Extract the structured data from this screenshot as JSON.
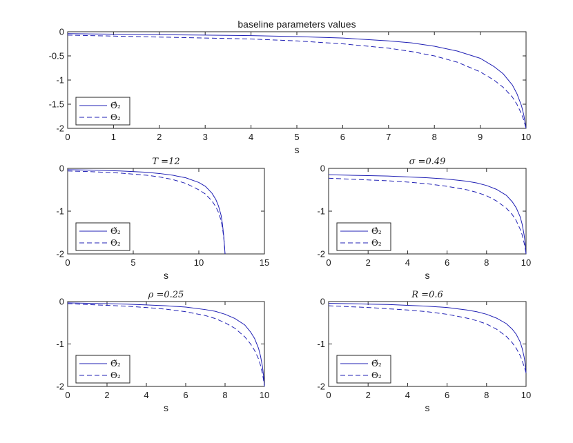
{
  "colors": {
    "series": "#1f1fb4",
    "axis": "#262626",
    "background": "#ffffff"
  },
  "chart_data": [
    {
      "type": "line",
      "title": "baseline parameters values",
      "title_style": "sans",
      "xlabel": "s",
      "ylabel": "",
      "xlim": [
        0,
        10
      ],
      "ylim": [
        -2,
        0
      ],
      "xticks": [
        0,
        1,
        2,
        3,
        4,
        5,
        6,
        7,
        8,
        9,
        10
      ],
      "yticks": [
        0,
        -0.5,
        -1,
        -1.5,
        -2
      ],
      "ytick_labels": [
        "0",
        "-0.5",
        "-1",
        "-1.5",
        "-2"
      ],
      "legend_position": "bottom-left",
      "series": [
        {
          "name": "Θ̂₂",
          "style": "solid",
          "x": [
            0,
            1,
            2,
            3,
            4,
            5,
            6,
            7,
            7.5,
            8,
            8.5,
            9,
            9.3,
            9.5,
            9.7,
            9.8,
            9.9,
            9.95,
            10
          ],
          "y": [
            -0.04,
            -0.05,
            -0.06,
            -0.07,
            -0.08,
            -0.1,
            -0.13,
            -0.19,
            -0.23,
            -0.3,
            -0.4,
            -0.55,
            -0.72,
            -0.87,
            -1.1,
            -1.28,
            -1.53,
            -1.72,
            -2.0
          ]
        },
        {
          "name": "Θ₂",
          "style": "dashed",
          "x": [
            0,
            1,
            2,
            3,
            4,
            5,
            6,
            7,
            7.5,
            8,
            8.5,
            9,
            9.3,
            9.5,
            9.7,
            9.8,
            9.9,
            9.95,
            10
          ],
          "y": [
            -0.07,
            -0.09,
            -0.11,
            -0.13,
            -0.15,
            -0.19,
            -0.25,
            -0.34,
            -0.41,
            -0.5,
            -0.63,
            -0.83,
            -1.0,
            -1.15,
            -1.35,
            -1.5,
            -1.7,
            -1.83,
            -2.0
          ]
        }
      ]
    },
    {
      "type": "line",
      "title": "T =12",
      "title_style": "serif",
      "xlabel": "s",
      "ylabel": "",
      "xlim": [
        0,
        15
      ],
      "ylim": [
        -2,
        0
      ],
      "xticks": [
        0,
        5,
        10,
        15
      ],
      "yticks": [
        0,
        -1,
        -2
      ],
      "ytick_labels": [
        "0",
        "-1",
        "-2"
      ],
      "legend_position": "bottom-left",
      "series": [
        {
          "name": "Θ̃₂",
          "style": "solid",
          "x": [
            0,
            2,
            4,
            6,
            7,
            8,
            9,
            10,
            10.5,
            11,
            11.3,
            11.5,
            11.7,
            11.8,
            11.9,
            12
          ],
          "y": [
            -0.03,
            -0.04,
            -0.06,
            -0.09,
            -0.12,
            -0.16,
            -0.22,
            -0.33,
            -0.42,
            -0.58,
            -0.73,
            -0.88,
            -1.1,
            -1.3,
            -1.58,
            -2.0
          ]
        },
        {
          "name": "Θ₂",
          "style": "dashed",
          "x": [
            0,
            2,
            4,
            6,
            7,
            8,
            9,
            10,
            10.5,
            11,
            11.3,
            11.5,
            11.7,
            11.8,
            11.9,
            12
          ],
          "y": [
            -0.06,
            -0.08,
            -0.11,
            -0.16,
            -0.2,
            -0.26,
            -0.35,
            -0.5,
            -0.6,
            -0.76,
            -0.9,
            -1.03,
            -1.22,
            -1.38,
            -1.62,
            -2.0
          ]
        }
      ]
    },
    {
      "type": "line",
      "title": "σ =0.49",
      "title_style": "serif",
      "xlabel": "s",
      "ylabel": "",
      "xlim": [
        0,
        10
      ],
      "ylim": [
        -2,
        0
      ],
      "xticks": [
        0,
        2,
        4,
        6,
        8,
        10
      ],
      "yticks": [
        0,
        -1,
        -2
      ],
      "ytick_labels": [
        "0",
        "-1",
        "-2"
      ],
      "legend_position": "bottom-left",
      "series": [
        {
          "name": "Θ̂₂",
          "style": "solid",
          "x": [
            0,
            1,
            2,
            3,
            4,
            5,
            6,
            7,
            7.5,
            8,
            8.5,
            9,
            9.3,
            9.5,
            9.7,
            9.8,
            9.9,
            9.95,
            10
          ],
          "y": [
            -0.15,
            -0.16,
            -0.17,
            -0.18,
            -0.2,
            -0.22,
            -0.25,
            -0.3,
            -0.34,
            -0.4,
            -0.49,
            -0.63,
            -0.78,
            -0.92,
            -1.13,
            -1.3,
            -1.55,
            -1.73,
            -2.0
          ]
        },
        {
          "name": "Θ₂",
          "style": "dashed",
          "x": [
            0,
            1,
            2,
            3,
            4,
            5,
            6,
            7,
            7.5,
            8,
            8.5,
            9,
            9.3,
            9.5,
            9.7,
            9.8,
            9.9,
            9.95,
            10
          ],
          "y": [
            -0.23,
            -0.25,
            -0.27,
            -0.29,
            -0.32,
            -0.36,
            -0.42,
            -0.5,
            -0.56,
            -0.64,
            -0.76,
            -0.93,
            -1.08,
            -1.22,
            -1.42,
            -1.55,
            -1.74,
            -1.85,
            -2.0
          ]
        }
      ]
    },
    {
      "type": "line",
      "title": "ρ =0.25",
      "title_style": "serif",
      "xlabel": "s",
      "ylabel": "",
      "xlim": [
        0,
        10
      ],
      "ylim": [
        -2,
        0
      ],
      "xticks": [
        0,
        2,
        4,
        6,
        8,
        10
      ],
      "yticks": [
        0,
        -1,
        -2
      ],
      "ytick_labels": [
        "0",
        "-1",
        "-2"
      ],
      "legend_position": "bottom-left",
      "series": [
        {
          "name": "Θ̃₂",
          "style": "solid",
          "x": [
            0,
            1,
            2,
            3,
            4,
            5,
            6,
            7,
            7.5,
            8,
            8.5,
            9,
            9.3,
            9.5,
            9.7,
            9.8,
            9.9,
            9.95,
            10
          ],
          "y": [
            -0.03,
            -0.04,
            -0.05,
            -0.06,
            -0.08,
            -0.1,
            -0.13,
            -0.19,
            -0.23,
            -0.3,
            -0.4,
            -0.55,
            -0.72,
            -0.87,
            -1.1,
            -1.28,
            -1.53,
            -1.72,
            -2.0
          ]
        },
        {
          "name": "Θ₂",
          "style": "dashed",
          "x": [
            0,
            1,
            2,
            3,
            4,
            5,
            6,
            7,
            7.5,
            8,
            8.5,
            9,
            9.3,
            9.5,
            9.7,
            9.8,
            9.9,
            9.95,
            10
          ],
          "y": [
            -0.05,
            -0.07,
            -0.09,
            -0.11,
            -0.14,
            -0.18,
            -0.24,
            -0.33,
            -0.4,
            -0.5,
            -0.63,
            -0.83,
            -1.0,
            -1.15,
            -1.35,
            -1.5,
            -1.7,
            -1.83,
            -2.0
          ]
        }
      ]
    },
    {
      "type": "line",
      "title": "R =0.6",
      "title_style": "serif",
      "xlabel": "s",
      "ylabel": "",
      "xlim": [
        0,
        10
      ],
      "ylim": [
        -2,
        0
      ],
      "xticks": [
        0,
        2,
        4,
        6,
        8,
        10
      ],
      "yticks": [
        0,
        -1,
        -2
      ],
      "ytick_labels": [
        "0",
        "-1",
        "-2"
      ],
      "legend_position": "bottom-left",
      "series": [
        {
          "name": "Θ̃₂",
          "style": "solid",
          "x": [
            0,
            1,
            2,
            3,
            4,
            5,
            6,
            7,
            7.5,
            8,
            8.5,
            9,
            9.3,
            9.5,
            9.7,
            9.8,
            9.9,
            9.95,
            10
          ],
          "y": [
            -0.04,
            -0.05,
            -0.06,
            -0.07,
            -0.09,
            -0.11,
            -0.14,
            -0.2,
            -0.24,
            -0.3,
            -0.39,
            -0.52,
            -0.65,
            -0.77,
            -0.95,
            -1.1,
            -1.3,
            -1.45,
            -1.68
          ]
        },
        {
          "name": "Θ₂",
          "style": "dashed",
          "x": [
            0,
            1,
            2,
            3,
            4,
            5,
            6,
            7,
            7.5,
            8,
            8.5,
            9,
            9.3,
            9.5,
            9.7,
            9.8,
            9.9,
            9.95,
            10
          ],
          "y": [
            -0.1,
            -0.12,
            -0.14,
            -0.17,
            -0.2,
            -0.24,
            -0.3,
            -0.39,
            -0.45,
            -0.53,
            -0.65,
            -0.82,
            -0.97,
            -1.1,
            -1.27,
            -1.39,
            -1.53,
            -1.6,
            -1.68
          ]
        }
      ]
    }
  ]
}
